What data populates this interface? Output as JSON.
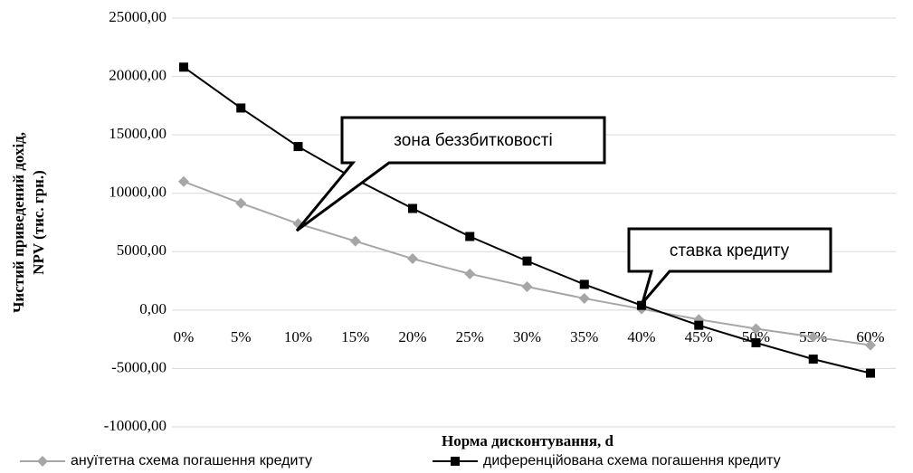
{
  "chart_data": {
    "type": "line",
    "categories": [
      "0%",
      "5%",
      "10%",
      "15%",
      "20%",
      "25%",
      "30%",
      "35%",
      "40%",
      "45%",
      "50%",
      "55%",
      "60%"
    ],
    "series": [
      {
        "name": "ануїтетна схема погашення кредиту",
        "color": "#a6a6a6",
        "marker": "diamond",
        "values": [
          11000,
          9150,
          7400,
          5900,
          4400,
          3100,
          2000,
          1000,
          100,
          -800,
          -1600,
          -2300,
          -3000
        ]
      },
      {
        "name": "диференційована схема погашення кредиту",
        "color": "#000000",
        "marker": "square",
        "values": [
          20800,
          17300,
          14000,
          11200,
          8700,
          6300,
          4200,
          2200,
          400,
          -1300,
          -2800,
          -4200,
          -5400
        ]
      }
    ],
    "ylim": [
      -10000,
      25000
    ],
    "yticks": [
      {
        "value": -10000,
        "label": "-10000,00"
      },
      {
        "value": -5000,
        "label": "-5000,00"
      },
      {
        "value": 0,
        "label": "0,00"
      },
      {
        "value": 5000,
        "label": "5000,00"
      },
      {
        "value": 10000,
        "label": "10000,00"
      },
      {
        "value": 15000,
        "label": "15000,00"
      },
      {
        "value": 20000,
        "label": "20000,00"
      },
      {
        "value": 25000,
        "label": "25000,00"
      }
    ],
    "grid": true,
    "xlabel": "Норма дисконтування, d",
    "ylabel": [
      "Чистий приведений дохід,",
      "NPV (тис. грн.)"
    ],
    "annotations": [
      "зона беззбитковості",
      "ставка кредиту"
    ],
    "legend": "bottom"
  }
}
